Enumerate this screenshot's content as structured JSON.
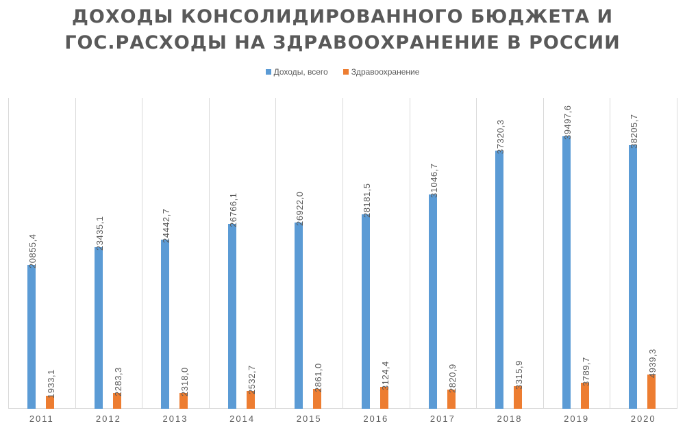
{
  "title_line1": "ДОХОДЫ КОНСОЛИДИРОВАННОГО БЮДЖЕТА И",
  "title_line2": "ГОС.РАСХОДЫ НА ЗДРАВООХРАНЕНИЕ В РОССИИ",
  "legend": [
    {
      "label": "Доходы, всего",
      "color": "#5b9bd5"
    },
    {
      "label": "Здравоохранение",
      "color": "#ed7d31"
    }
  ],
  "chart_data": {
    "type": "bar",
    "title": "ДОХОДЫ КОНСОЛИДИРОВАННОГО БЮДЖЕТА И ГОС.РАСХОДЫ НА ЗДРАВООХРАНЕНИЕ В РОССИИ",
    "xlabel": "",
    "ylabel": "",
    "categories": [
      "2011",
      "2012",
      "2013",
      "2014",
      "2015",
      "2016",
      "2017",
      "2018",
      "2019",
      "2020"
    ],
    "series": [
      {
        "name": "Доходы, всего",
        "color": "#5b9bd5",
        "values": [
          20855.4,
          23435.1,
          24442.7,
          26766.1,
          26922.0,
          28181.5,
          31046.7,
          37320.3,
          39497.6,
          38205.7
        ],
        "labels": [
          "20855,4",
          "23435,1",
          "24442,7",
          "26766,1",
          "26922,0",
          "28181,5",
          "31046,7",
          "37320,3",
          "39497,6",
          "38205,7"
        ]
      },
      {
        "name": "Здравоохранение",
        "color": "#ed7d31",
        "values": [
          1933.1,
          2283.3,
          2318.0,
          2532.7,
          2861.0,
          3124.4,
          2820.9,
          3315.9,
          3789.7,
          4939.3
        ],
        "labels": [
          "1933,1",
          "2283,3",
          "2318,0",
          "2532,7",
          "2861,0",
          "3124,4",
          "2820,9",
          "3315,9",
          "3789,7",
          "4939,3"
        ]
      }
    ],
    "ylim": [
      0,
      45000
    ],
    "grid": "vertical category separators",
    "legend_position": "top",
    "data_labels": "rotated vertical above bars"
  }
}
